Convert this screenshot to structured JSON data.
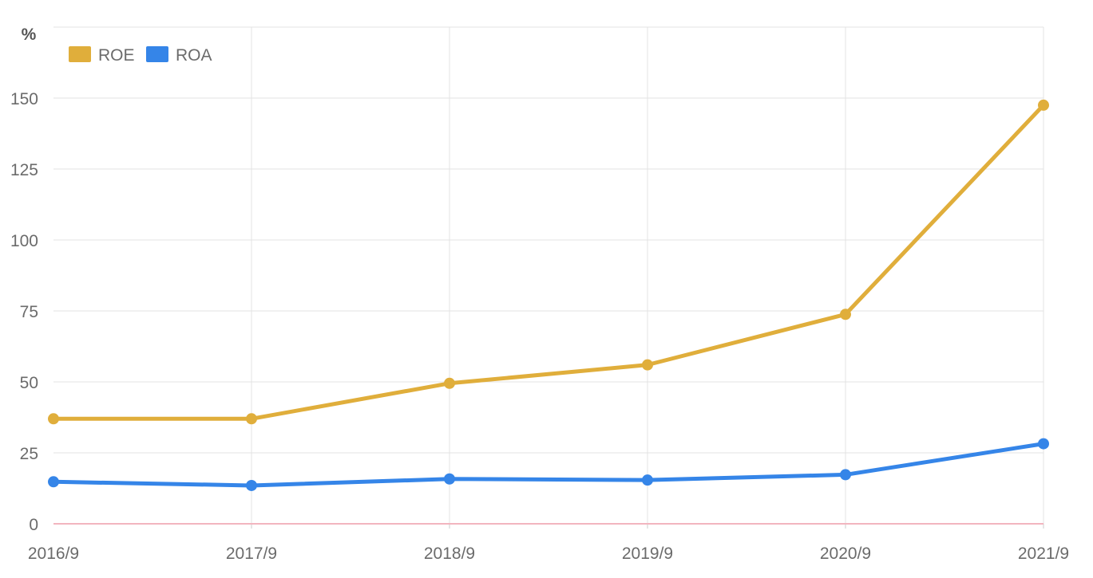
{
  "chart_data": {
    "type": "line",
    "unit_label": "%",
    "categories": [
      "2016/9",
      "2017/9",
      "2018/9",
      "2019/9",
      "2020/9",
      "2021/9"
    ],
    "y_ticks": [
      0,
      25,
      50,
      75,
      100,
      125,
      150
    ],
    "ylim": [
      0,
      175
    ],
    "grid": true,
    "legend_position": "top-left",
    "series": [
      {
        "name": "ROE",
        "color": "#e0ae3b",
        "values": [
          37.0,
          37.0,
          49.5,
          56.0,
          73.8,
          147.5
        ]
      },
      {
        "name": "ROA",
        "color": "#3585e8",
        "values": [
          14.8,
          13.5,
          15.8,
          15.4,
          17.3,
          28.2
        ]
      }
    ]
  }
}
